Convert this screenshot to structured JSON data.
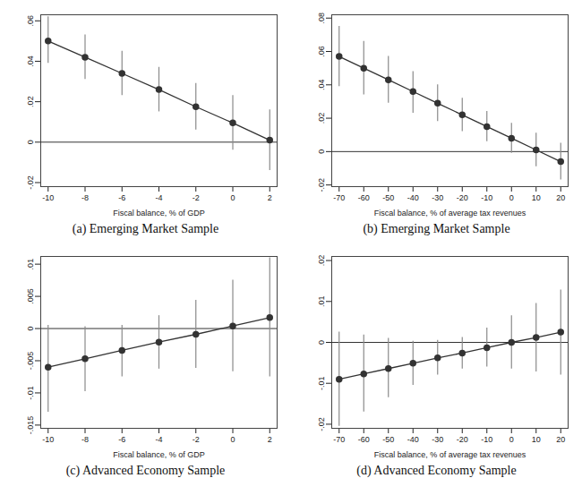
{
  "chart_data": [
    {
      "type": "line",
      "caption": "(a) Emerging Market Sample",
      "x_label": "Fiscal balance, % of GDP",
      "color": "#333333",
      "marker": "circle",
      "x": [
        -10,
        -8,
        -6,
        -4,
        -2,
        0,
        2
      ],
      "values": [
        0.05,
        0.042,
        0.034,
        0.026,
        0.0175,
        0.0095,
        0.001
      ],
      "lower": [
        0.039,
        0.031,
        0.023,
        0.015,
        0.006,
        -0.004,
        -0.014
      ],
      "upper": [
        0.062,
        0.053,
        0.045,
        0.037,
        0.029,
        0.023,
        0.016
      ],
      "xlim": [
        -10.4,
        2.4
      ],
      "xticks": [
        -10,
        -8,
        -6,
        -4,
        -2,
        0,
        2
      ],
      "ylim": [
        -0.022,
        0.063
      ],
      "yticks": [
        {
          "value": -0.02,
          "label": "-.02"
        },
        0,
        {
          "value": 0.02,
          "label": ".02"
        },
        {
          "value": 0.04,
          "label": ".04"
        },
        {
          "value": 0.06,
          "label": ".06"
        }
      ],
      "zero_line": 0
    },
    {
      "type": "line",
      "caption": "(b) Emerging Market Sample",
      "x_label": "Fiscal balance, % of average tax revenues",
      "color": "#333333",
      "marker": "circle",
      "x": [
        -70,
        -60,
        -50,
        -40,
        -30,
        -20,
        -10,
        0,
        10,
        20
      ],
      "values": [
        0.057,
        0.05,
        0.043,
        0.036,
        0.029,
        0.022,
        0.015,
        0.008,
        0.001,
        -0.006
      ],
      "lower": [
        0.039,
        0.034,
        0.029,
        0.023,
        0.018,
        0.012,
        0.006,
        -0.001,
        -0.009,
        -0.017
      ],
      "upper": [
        0.075,
        0.066,
        0.057,
        0.048,
        0.04,
        0.032,
        0.024,
        0.017,
        0.011,
        0.005
      ],
      "xlim": [
        -73,
        23
      ],
      "xticks": [
        -70,
        -60,
        -50,
        -40,
        -30,
        -20,
        -10,
        0,
        10,
        20
      ],
      "ylim": [
        -0.021,
        0.082
      ],
      "yticks": [
        {
          "value": -0.02,
          "label": "-.02"
        },
        0,
        {
          "value": 0.02,
          "label": ".02"
        },
        {
          "value": 0.04,
          "label": ".04"
        },
        {
          "value": 0.06,
          "label": ".06"
        },
        {
          "value": 0.08,
          "label": ".08"
        }
      ],
      "zero_line": 0
    },
    {
      "type": "line",
      "caption": "(c) Advanced Economy Sample",
      "x_label": "Fiscal balance, % of GDP",
      "color": "#333333",
      "marker": "circle",
      "x": [
        -10,
        -8,
        -6,
        -4,
        -2,
        0,
        2
      ],
      "values": [
        -0.006,
        -0.0047,
        -0.0034,
        -0.0021,
        -0.0009,
        0.0004,
        0.0017
      ],
      "lower": [
        -0.013,
        -0.0098,
        -0.0075,
        -0.0063,
        -0.0062,
        -0.0067,
        -0.0075
      ],
      "upper": [
        0.0005,
        0.0003,
        0.0005,
        0.002,
        0.0044,
        0.0075,
        0.011
      ],
      "xlim": [
        -10.4,
        2.4
      ],
      "xticks": [
        -10,
        -8,
        -6,
        -4,
        -2,
        0,
        2
      ],
      "ylim": [
        -0.0155,
        0.0112
      ],
      "yticks": [
        {
          "value": -0.015,
          "label": "-.015"
        },
        {
          "value": -0.01,
          "label": "-.01"
        },
        {
          "value": -0.005,
          "label": "-.005"
        },
        0,
        {
          "value": 0.005,
          "label": ".005"
        },
        {
          "value": 0.01,
          "label": ".01"
        }
      ],
      "zero_line": 0
    },
    {
      "type": "line",
      "caption": "(d) Advanced Economy Sample",
      "x_label": "Fiscal balance, % of average tax revenues",
      "color": "#333333",
      "marker": "circle",
      "x": [
        -70,
        -60,
        -50,
        -40,
        -30,
        -20,
        -10,
        0,
        10,
        20
      ],
      "values": [
        -0.009,
        -0.0077,
        -0.0064,
        -0.0051,
        -0.0038,
        -0.0026,
        -0.0013,
        0,
        0.0012,
        0.0025
      ],
      "lower": [
        -0.0205,
        -0.017,
        -0.0135,
        -0.0105,
        -0.008,
        -0.0065,
        -0.006,
        -0.0065,
        -0.0072,
        -0.008
      ],
      "upper": [
        0.0025,
        0.0018,
        0.001,
        0.0003,
        0.0005,
        0.0012,
        0.0035,
        0.0065,
        0.0095,
        0.0128
      ],
      "xlim": [
        -73,
        23
      ],
      "xticks": [
        -70,
        -60,
        -50,
        -40,
        -30,
        -20,
        -10,
        0,
        10,
        20
      ],
      "ylim": [
        -0.021,
        0.021
      ],
      "yticks": [
        {
          "value": -0.02,
          "label": "-.02"
        },
        {
          "value": -0.01,
          "label": "-.01"
        },
        0,
        {
          "value": 0.01,
          "label": ".01"
        },
        {
          "value": 0.02,
          "label": ".02"
        }
      ],
      "zero_line": 0
    }
  ]
}
